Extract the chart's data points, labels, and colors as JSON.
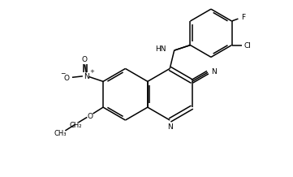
{
  "background": "#ffffff",
  "bond_color": "#000000",
  "figsize": [
    3.61,
    2.18
  ],
  "dpi": 100,
  "lw": 1.1,
  "fs": 6.5,
  "xlim": [
    0,
    10
  ],
  "ylim": [
    0,
    6
  ]
}
